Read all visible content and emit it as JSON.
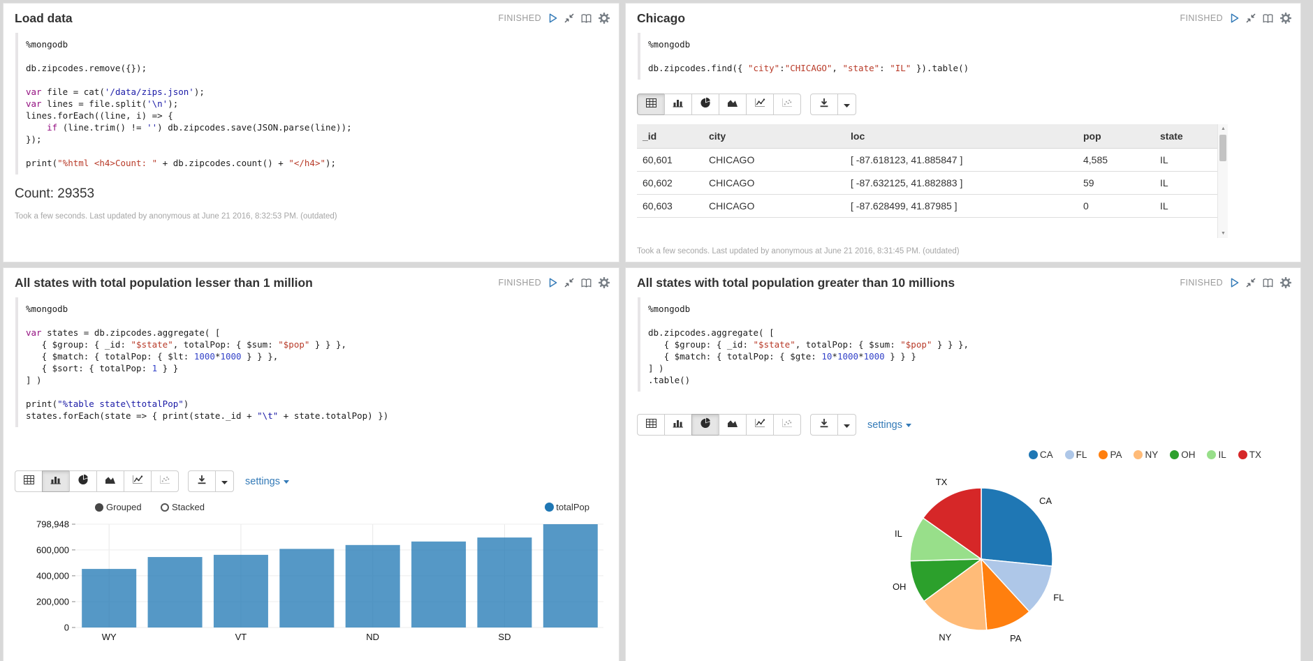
{
  "labels": {
    "settings": "settings"
  },
  "accent_colors": {
    "link_blue": "#337ab7",
    "play_blue": "#337ab7",
    "keyword_purple": "#930f80",
    "string_navy": "#1a1aa6",
    "string_red": "#b83a28",
    "number_blue": "#3342c8",
    "bar_blue": "#1f77b4"
  },
  "panels": [
    {
      "title": "Load data",
      "status": "FINISHED",
      "code": [
        [
          {
            "c": "d",
            "t": "%mongodb"
          }
        ],
        [],
        [
          {
            "c": "d",
            "t": "db.zipcodes.remove({});"
          }
        ],
        [],
        [
          {
            "c": "k",
            "t": "var"
          },
          {
            "c": "d",
            "t": " file = cat("
          },
          {
            "c": "s",
            "t": "'/data/zips.json'"
          },
          {
            "c": "d",
            "t": ");"
          }
        ],
        [
          {
            "c": "k",
            "t": "var"
          },
          {
            "c": "d",
            "t": " lines = file.split("
          },
          {
            "c": "s",
            "t": "'\\n'"
          },
          {
            "c": "d",
            "t": ");"
          }
        ],
        [
          {
            "c": "d",
            "t": "lines.forEach((line, i) => {"
          }
        ],
        [
          {
            "c": "d",
            "t": "    "
          },
          {
            "c": "k",
            "t": "if"
          },
          {
            "c": "d",
            "t": " (line.trim() != "
          },
          {
            "c": "s",
            "t": "''"
          },
          {
            "c": "d",
            "t": ") db.zipcodes.save(JSON.parse(line));"
          }
        ],
        [
          {
            "c": "d",
            "t": "});"
          }
        ],
        [],
        [
          {
            "c": "d",
            "t": "print("
          },
          {
            "c": "r",
            "t": "\"%html <h4>Count: \""
          },
          {
            "c": "d",
            "t": " + db.zipcodes.count() + "
          },
          {
            "c": "r",
            "t": "\"</h4>\""
          },
          {
            "c": "d",
            "t": ");"
          }
        ]
      ],
      "output": "Count: 29353",
      "footer": "Took a few seconds. Last updated by anonymous at June 21 2016, 8:32:53 PM. (outdated)"
    },
    {
      "title": "Chicago",
      "status": "FINISHED",
      "code": [
        [
          {
            "c": "d",
            "t": "%mongodb"
          }
        ],
        [],
        [
          {
            "c": "d",
            "t": "db.zipcodes.find({ "
          },
          {
            "c": "r",
            "t": "\"city\""
          },
          {
            "c": "d",
            "t": ":"
          },
          {
            "c": "r",
            "t": "\"CHICAGO\""
          },
          {
            "c": "d",
            "t": ", "
          },
          {
            "c": "r",
            "t": "\"state\""
          },
          {
            "c": "d",
            "t": ": "
          },
          {
            "c": "r",
            "t": "\"IL\""
          },
          {
            "c": "d",
            "t": " }).table()"
          }
        ]
      ],
      "table": {
        "headers": [
          "_id",
          "city",
          "loc",
          "pop",
          "state"
        ],
        "rows": [
          [
            "60,601",
            "CHICAGO",
            "[ -87.618123, 41.885847 ]",
            "4,585",
            "IL"
          ],
          [
            "60,602",
            "CHICAGO",
            "[ -87.632125, 41.882883 ]",
            "59",
            "IL"
          ],
          [
            "60,603",
            "CHICAGO",
            "[ -87.628499, 41.87985 ]",
            "0",
            "IL"
          ]
        ]
      },
      "footer": "Took a few seconds. Last updated by anonymous at June 21 2016, 8:31:45 PM. (outdated)"
    },
    {
      "title": "All states with total population lesser than 1 million",
      "status": "FINISHED",
      "code": [
        [
          {
            "c": "d",
            "t": "%mongodb"
          }
        ],
        [],
        [
          {
            "c": "k",
            "t": "var"
          },
          {
            "c": "d",
            "t": " states = db.zipcodes.aggregate( ["
          }
        ],
        [
          {
            "c": "d",
            "t": "   { $group: { _id: "
          },
          {
            "c": "r",
            "t": "\"$state\""
          },
          {
            "c": "d",
            "t": ", totalPop: { $sum: "
          },
          {
            "c": "r",
            "t": "\"$pop\""
          },
          {
            "c": "d",
            "t": " } } },"
          }
        ],
        [
          {
            "c": "d",
            "t": "   { $match: { totalPop: { $lt: "
          },
          {
            "c": "n",
            "t": "1000"
          },
          {
            "c": "d",
            "t": "*"
          },
          {
            "c": "n",
            "t": "1000"
          },
          {
            "c": "d",
            "t": " } } },"
          }
        ],
        [
          {
            "c": "d",
            "t": "   { $sort: { totalPop: "
          },
          {
            "c": "n",
            "t": "1"
          },
          {
            "c": "d",
            "t": " } }"
          }
        ],
        [
          {
            "c": "d",
            "t": "] )"
          }
        ],
        [],
        [
          {
            "c": "d",
            "t": "print("
          },
          {
            "c": "s",
            "t": "\"%table state\\ttotalPop\""
          },
          {
            "c": "d",
            "t": ")"
          }
        ],
        [
          {
            "c": "d",
            "t": "states.forEach(state => { print(state._id + "
          },
          {
            "c": "s",
            "t": "\"\\t\""
          },
          {
            "c": "d",
            "t": " + state.totalPop) })"
          }
        ]
      ]
    },
    {
      "title": "All states with total population greater than 10 millions",
      "status": "FINISHED",
      "code": [
        [
          {
            "c": "d",
            "t": "%mongodb"
          }
        ],
        [],
        [
          {
            "c": "d",
            "t": "db.zipcodes.aggregate( ["
          }
        ],
        [
          {
            "c": "d",
            "t": "   { $group: { _id: "
          },
          {
            "c": "r",
            "t": "\"$state\""
          },
          {
            "c": "d",
            "t": ", totalPop: { $sum: "
          },
          {
            "c": "r",
            "t": "\"$pop\""
          },
          {
            "c": "d",
            "t": " } } },"
          }
        ],
        [
          {
            "c": "d",
            "t": "   { $match: { totalPop: { $gte: "
          },
          {
            "c": "n",
            "t": "10"
          },
          {
            "c": "d",
            "t": "*"
          },
          {
            "c": "n",
            "t": "1000"
          },
          {
            "c": "d",
            "t": "*"
          },
          {
            "c": "n",
            "t": "1000"
          },
          {
            "c": "d",
            "t": " } } }"
          }
        ],
        [
          {
            "c": "d",
            "t": "] )"
          }
        ],
        [
          {
            "c": "d",
            "t": ".table()"
          }
        ]
      ]
    }
  ],
  "chart_data": [
    {
      "type": "bar",
      "title": "",
      "xlabel": "",
      "ylabel": "",
      "categories": [
        "WY",
        "",
        "VT",
        "",
        "ND",
        "",
        "SD",
        ""
      ],
      "series": [
        {
          "name": "totalPop",
          "color": "#1f77b4",
          "values": [
            453000,
            545000,
            562000,
            608000,
            638000,
            665000,
            696000,
            798948
          ]
        }
      ],
      "ylim": [
        0,
        798948
      ],
      "y_ticks": [
        {
          "label": "0",
          "value": 0
        },
        {
          "label": "200,000",
          "value": 200000
        },
        {
          "label": "400,000",
          "value": 400000
        },
        {
          "label": "600,000",
          "value": 600000
        },
        {
          "label": "798,948",
          "value": 798948
        }
      ],
      "grid": true,
      "legend_position": "top-right",
      "modes": [
        "Grouped",
        "Stacked"
      ],
      "selected_mode": "Grouped"
    },
    {
      "type": "pie",
      "title": "",
      "labels": [
        "CA",
        "FL",
        "PA",
        "NY",
        "OH",
        "IL",
        "TX"
      ],
      "values_percent": [
        26.6,
        11.6,
        10.6,
        16.1,
        9.7,
        10.2,
        15.2
      ],
      "colors": [
        "#1f77b4",
        "#aec7e8",
        "#ff7f0e",
        "#ffbb78",
        "#2ca02c",
        "#98df8a",
        "#d62728"
      ],
      "legend_position": "top"
    }
  ]
}
